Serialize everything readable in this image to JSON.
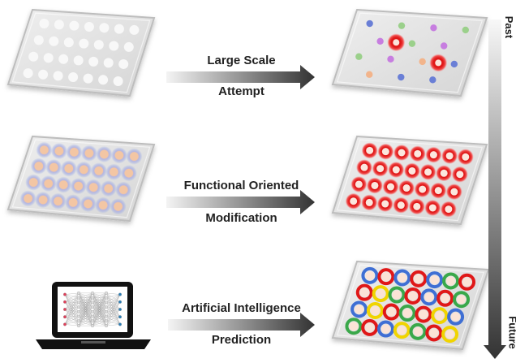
{
  "rows": [
    {
      "label_top": "Large Scale",
      "label_bottom": "Attempt"
    },
    {
      "label_top": "Functional Oriented",
      "label_bottom": "Modification"
    },
    {
      "label_top": "Artificial Intelligence",
      "label_bottom": "Prediction"
    }
  ],
  "timeline": {
    "start": "Past",
    "end": "Future"
  },
  "colors": {
    "plate": "#e6e6e6",
    "plate_edge": "#bdbdbd",
    "blank_dot": "#f8f8f8",
    "peach_dot": "#f3c6a4",
    "blue_glow": "#6f8ad8",
    "red_ring": "#e01818",
    "green_ring": "#3aa84a",
    "yellow_ring": "#f1d400",
    "blue_ring": "#3f6fd4",
    "arrow_dark": "#333333",
    "arrow_light": "#f2f2f2",
    "laptop": "#111111"
  },
  "icons": [
    "laptop-icon",
    "neural-network-icon"
  ]
}
